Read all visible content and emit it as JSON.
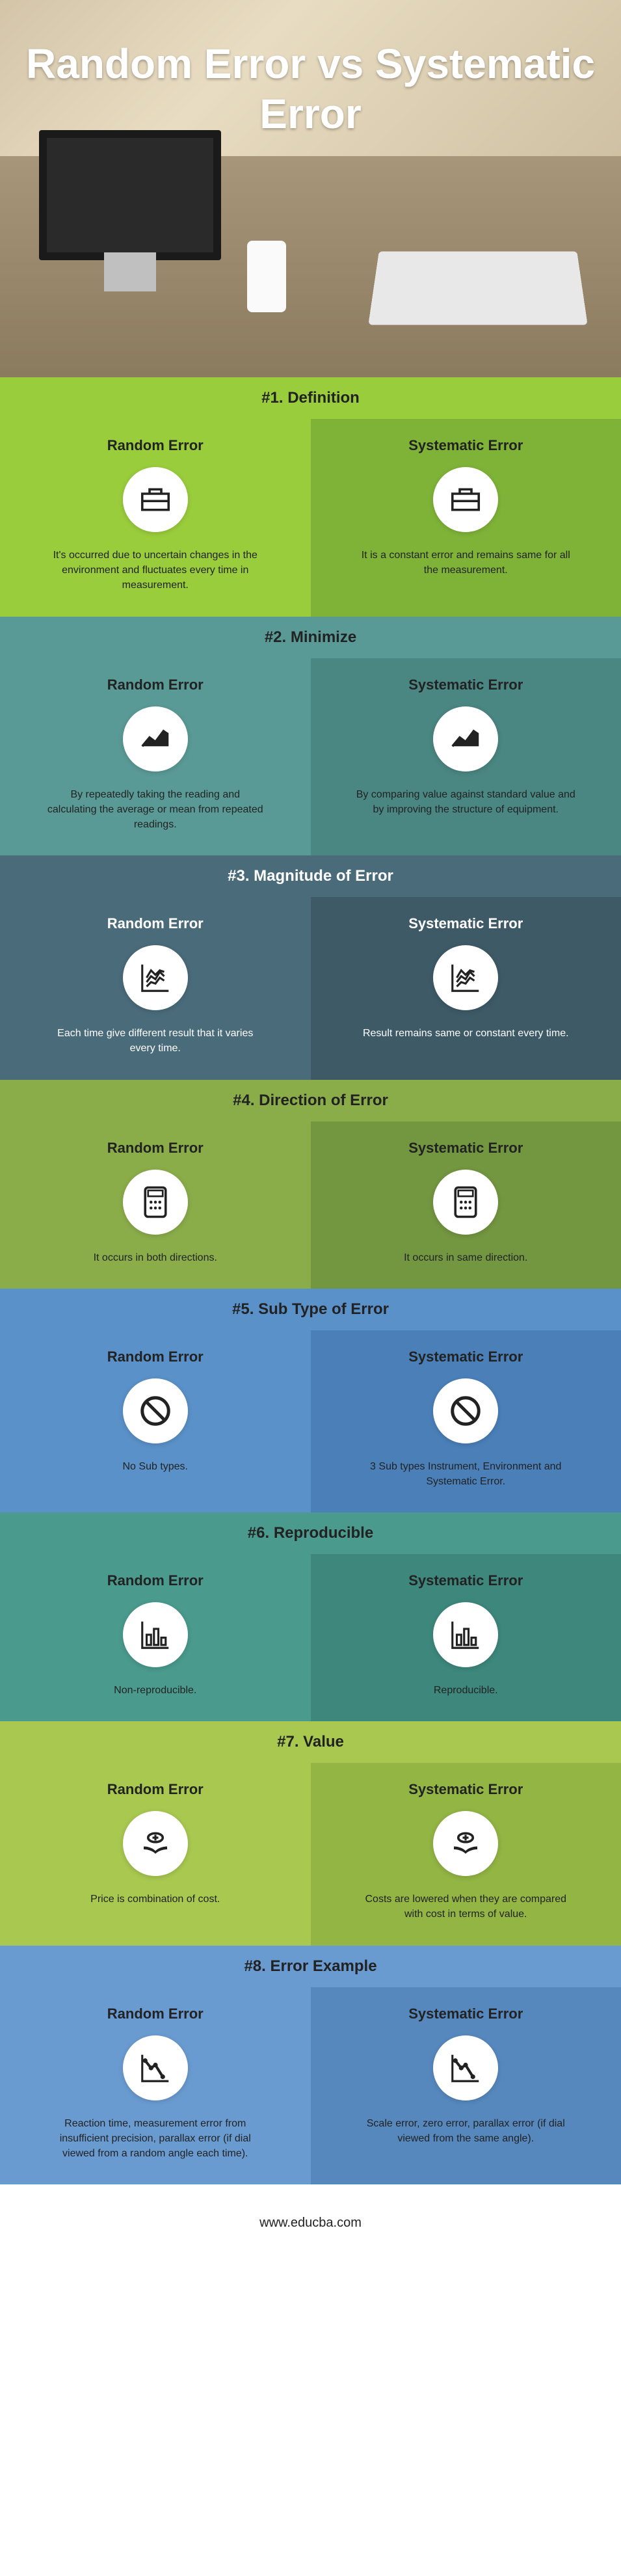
{
  "title": "Random Error vs Systematic Error",
  "footer": "www.educba.com",
  "colors": {
    "green_a": "#9acd3c",
    "green_b": "#7fb338",
    "teal_a": "#5a9a96",
    "teal_b": "#4a8682",
    "slate_a": "#4a6b7a",
    "slate_b": "#3e5a67",
    "olive_a": "#8aad4a",
    "olive_b": "#739640",
    "blue_a": "#5a91c8",
    "blue_b": "#4a7fb8",
    "teal2_a": "#4a9a8e",
    "teal2_b": "#3d877c",
    "lime_a": "#a8c850",
    "lime_b": "#92b544",
    "blue2_a": "#6a9bd0",
    "blue2_b": "#5688be"
  },
  "sections": [
    {
      "header": "#1. Definition",
      "header_bg": "green_a",
      "left_bg": "green_a",
      "right_bg": "green_b",
      "icon": "briefcase",
      "left": {
        "title": "Random Error",
        "desc": "It's occurred due to uncertain changes in the environment and fluctuates every time in measurement."
      },
      "right": {
        "title": "Systematic Error",
        "desc": "It is a constant error and remains same for all the measurement."
      }
    },
    {
      "header": "#2. Minimize",
      "header_bg": "teal_a",
      "left_bg": "teal_a",
      "right_bg": "teal_b",
      "icon": "trend",
      "left": {
        "title": "Random Error",
        "desc": "By repeatedly taking the reading and calculating the average or mean from repeated readings."
      },
      "right": {
        "title": "Systematic Error",
        "desc": "By comparing value against standard value and by improving the structure of equipment."
      }
    },
    {
      "header": "#3. Magnitude of Error",
      "header_bg": "slate_a",
      "left_bg": "slate_a",
      "right_bg": "slate_b",
      "icon": "chart-lines",
      "left": {
        "title": "Random Error",
        "desc": "Each time give different result that it varies every time."
      },
      "right": {
        "title": "Systematic Error",
        "desc": "Result remains same or constant every time."
      }
    },
    {
      "header": "#4. Direction of Error",
      "header_bg": "olive_a",
      "left_bg": "olive_a",
      "right_bg": "olive_b",
      "icon": "calculator",
      "left": {
        "title": "Random Error",
        "desc": "It occurs in both directions."
      },
      "right": {
        "title": "Systematic Error",
        "desc": "It occurs in same direction."
      }
    },
    {
      "header": "#5. Sub Type of Error",
      "header_bg": "blue_a",
      "left_bg": "blue_a",
      "right_bg": "blue_b",
      "icon": "nosign",
      "left": {
        "title": "Random Error",
        "desc": "No Sub types."
      },
      "right": {
        "title": "Systematic Error",
        "desc": "3 Sub types Instrument, Environment and Systematic Error."
      }
    },
    {
      "header": "#6. Reproducible",
      "header_bg": "teal2_a",
      "left_bg": "teal2_a",
      "right_bg": "teal2_b",
      "icon": "bars",
      "left": {
        "title": "Random Error",
        "desc": "Non-reproducible."
      },
      "right": {
        "title": "Systematic Error",
        "desc": "Reproducible."
      }
    },
    {
      "header": "#7. Value",
      "header_bg": "lime_a",
      "left_bg": "lime_a",
      "right_bg": "lime_b",
      "icon": "money",
      "left": {
        "title": "Random Error",
        "desc": "Price is combination of cost."
      },
      "right": {
        "title": "Systematic Error",
        "desc": "Costs are lowered when they are compared with cost in terms of value."
      }
    },
    {
      "header": "#8. Error Example",
      "header_bg": "blue2_a",
      "left_bg": "blue2_a",
      "right_bg": "blue2_b",
      "icon": "line-down",
      "left": {
        "title": "Random Error",
        "desc": "Reaction time, measurement error from insufficient precision, parallax error (if dial viewed from a random angle each time)."
      },
      "right": {
        "title": "Systematic Error",
        "desc": "Scale error, zero error, parallax error (if dial viewed from the same angle)."
      }
    }
  ]
}
